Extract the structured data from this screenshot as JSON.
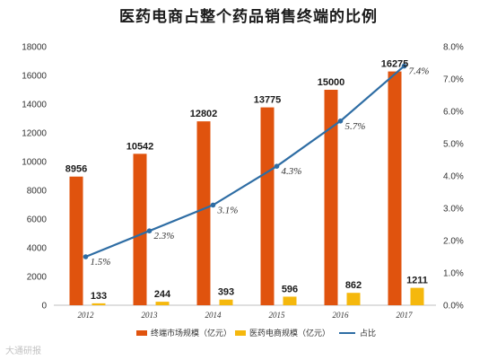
{
  "title": "医药电商占整个药品销售终端的比例",
  "watermark": "大通研报",
  "colors": {
    "terminal": "#e0530e",
    "ecommerce": "#f5b80d",
    "ratio": "#2e6da4"
  },
  "chart_data": {
    "type": "bar",
    "title": "医药电商占整个药品销售终端的比例",
    "categories": [
      "2012",
      "2013",
      "2014",
      "2015",
      "2016",
      "2017"
    ],
    "series": [
      {
        "name": "终端市场规模（亿元）",
        "type": "bar",
        "axis": "left",
        "values": [
          8956,
          10542,
          12802,
          13775,
          15000,
          16275
        ],
        "labels": [
          "8956",
          "10542",
          "12802",
          "13775",
          "15000",
          "16275"
        ]
      },
      {
        "name": "医药电商规模（亿元）",
        "type": "bar",
        "axis": "left",
        "values": [
          133,
          244,
          393,
          596,
          862,
          1211
        ],
        "labels": [
          "133",
          "244",
          "393",
          "596",
          "862",
          "1211"
        ]
      },
      {
        "name": "占比",
        "type": "line",
        "axis": "right",
        "values": [
          1.5,
          2.3,
          3.1,
          4.3,
          5.7,
          7.4
        ],
        "labels": [
          "1.5%",
          "2.3%",
          "3.1%",
          "4.3%",
          "5.7%",
          "7.4%"
        ]
      }
    ],
    "ylim_left": [
      0,
      18000
    ],
    "yticks_left": [
      "0",
      "2000",
      "4000",
      "6000",
      "8000",
      "10000",
      "12000",
      "14000",
      "16000",
      "18000"
    ],
    "ylim_right": [
      0,
      8
    ],
    "yticks_right": [
      "0.0%",
      "1.0%",
      "2.0%",
      "3.0%",
      "4.0%",
      "5.0%",
      "6.0%",
      "7.0%",
      "8.0%"
    ],
    "grid": false,
    "legend": "bottom"
  }
}
